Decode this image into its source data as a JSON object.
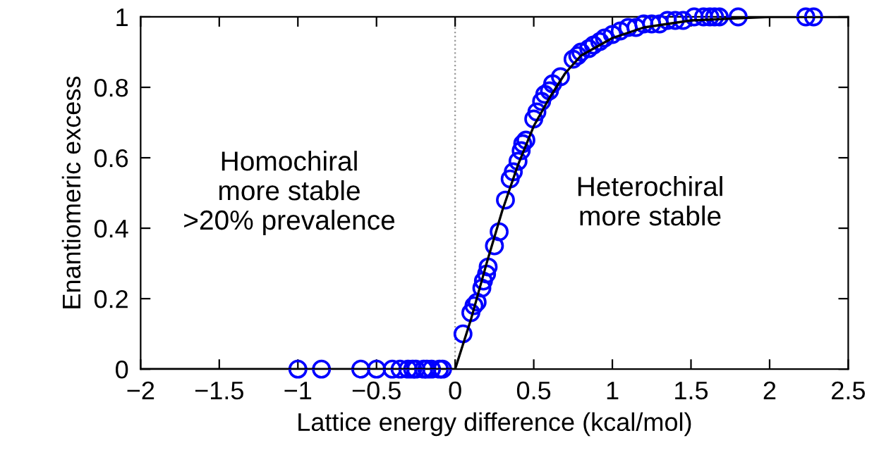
{
  "chart_data": {
    "type": "scatter",
    "xlabel": "Lattice energy difference (kcal/mol)",
    "ylabel": "Enantiomeric excess",
    "xlim": [
      -2,
      2.5
    ],
    "ylim": [
      0,
      1
    ],
    "xticks": [
      {
        "value": -2,
        "label": "−2"
      },
      {
        "value": -1.5,
        "label": "−1.5"
      },
      {
        "value": -1,
        "label": "−1"
      },
      {
        "value": -0.5,
        "label": "−0.5"
      },
      0,
      0.5,
      1,
      1.5,
      2,
      2.5
    ],
    "yticks": [
      0,
      0.2,
      0.4,
      0.6,
      0.8,
      1
    ],
    "marker": "circle",
    "grid": false,
    "legend": false,
    "annotations": [
      "Homochiral\nmore stable\n>20% prevalence",
      "Heterochiral\nmore stable"
    ],
    "ref_lines": [
      {
        "axis": "x",
        "value": 0,
        "color": "#999999",
        "line_style": "dotted"
      }
    ],
    "series": [
      {
        "color": "#0000ff",
        "x": [
          -1.0,
          -0.85,
          -0.6,
          -0.5,
          -0.4,
          -0.35,
          -0.3,
          -0.27,
          -0.25,
          -0.2,
          -0.18,
          -0.15,
          -0.1,
          -0.08,
          0.05,
          0.1,
          0.12,
          0.14,
          0.17,
          0.18,
          0.2,
          0.21,
          0.25,
          0.28,
          0.32,
          0.35,
          0.37,
          0.4,
          0.42,
          0.43,
          0.45,
          0.5,
          0.52,
          0.55,
          0.57,
          0.6,
          0.62,
          0.67,
          0.75,
          0.78,
          0.8,
          0.85,
          0.88,
          0.92,
          0.95,
          1.0,
          1.05,
          1.1,
          1.15,
          1.2,
          1.25,
          1.3,
          1.35,
          1.4,
          1.45,
          1.52,
          1.58,
          1.62,
          1.65,
          1.68,
          1.8,
          2.23,
          2.28
        ],
        "values": [
          0,
          0,
          0,
          0,
          0,
          0,
          0,
          0,
          0,
          0,
          0,
          0,
          0,
          0,
          0.1,
          0.16,
          0.18,
          0.19,
          0.23,
          0.25,
          0.27,
          0.29,
          0.35,
          0.39,
          0.48,
          0.54,
          0.56,
          0.59,
          0.62,
          0.64,
          0.65,
          0.71,
          0.73,
          0.76,
          0.78,
          0.79,
          0.81,
          0.83,
          0.88,
          0.89,
          0.9,
          0.91,
          0.92,
          0.93,
          0.94,
          0.95,
          0.96,
          0.97,
          0.97,
          0.98,
          0.98,
          0.98,
          0.99,
          0.99,
          0.99,
          1.0,
          1.0,
          1.0,
          1.0,
          1.0,
          1.0,
          1.0,
          1.0
        ]
      },
      {
        "type": "line",
        "color": "#000000",
        "line_style": "solid",
        "marker": "none",
        "x": [
          -2,
          0,
          0.1,
          0.2,
          0.3,
          0.4,
          0.5,
          0.6,
          0.7,
          0.8,
          1.0,
          1.2,
          1.5,
          2.0,
          2.5
        ],
        "values": [
          0,
          0,
          0.14,
          0.3,
          0.45,
          0.58,
          0.69,
          0.77,
          0.84,
          0.89,
          0.94,
          0.97,
          0.99,
          1.0,
          1.0
        ]
      }
    ]
  }
}
